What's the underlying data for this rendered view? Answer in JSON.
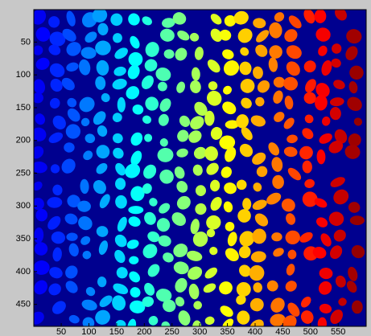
{
  "chart_data": {
    "type": "image",
    "colormap": "jet",
    "background": "#00008f",
    "xlim": [
      0.5,
      600.5
    ],
    "ylim": [
      0.5,
      483.5
    ],
    "y_direction": "reverse",
    "xticks": [
      50,
      100,
      150,
      200,
      250,
      300,
      350,
      400,
      450,
      500,
      550
    ],
    "yticks": [
      50,
      100,
      150,
      200,
      250,
      300,
      350,
      400,
      450
    ]
  }
}
